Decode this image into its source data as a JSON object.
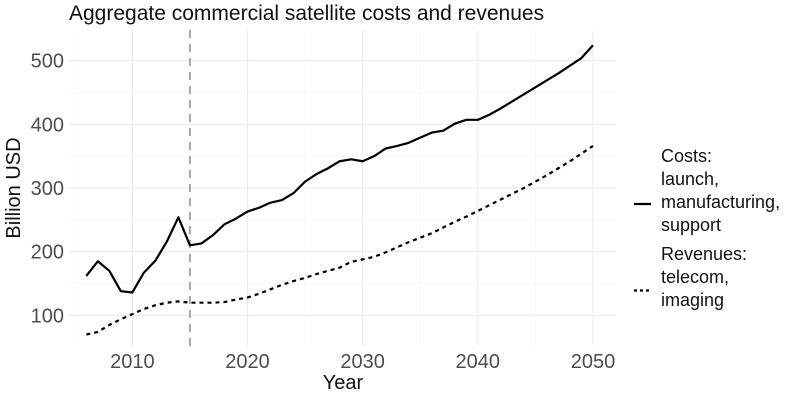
{
  "chart_data": {
    "type": "line",
    "title": "Aggregate commercial satellite costs and revenues",
    "xlabel": "Year",
    "ylabel": "Billion USD",
    "xlim": [
      2004.5,
      2052
    ],
    "ylim": [
      52,
      548
    ],
    "x_ticks": [
      2010,
      2020,
      2030,
      2040,
      2050
    ],
    "y_ticks": [
      100,
      200,
      300,
      400,
      500
    ],
    "grid": true,
    "legend_position": "right",
    "reference_line": {
      "x": 2015,
      "style": "dashed",
      "color": "#a6a6a6"
    },
    "series": [
      {
        "name": "Costs:\nlaunch,\nmanufacturing,\nsupport",
        "style": "solid",
        "color": "#000000",
        "x": [
          2006,
          2007,
          2008,
          2009,
          2010,
          2011,
          2012,
          2013,
          2014,
          2015,
          2016,
          2017,
          2018,
          2019,
          2020,
          2021,
          2022,
          2023,
          2024,
          2025,
          2026,
          2027,
          2028,
          2029,
          2030,
          2031,
          2032,
          2033,
          2034,
          2035,
          2036,
          2037,
          2038,
          2039,
          2040,
          2041,
          2042,
          2043,
          2044,
          2045,
          2046,
          2047,
          2048,
          2049,
          2050
        ],
        "y": [
          162,
          185,
          170,
          138,
          136,
          167,
          186,
          216,
          254,
          210,
          213,
          226,
          243,
          252,
          263,
          269,
          277,
          281,
          292,
          310,
          322,
          331,
          342,
          345,
          342,
          350,
          362,
          366,
          371,
          379,
          387,
          390,
          401,
          407,
          407,
          415,
          425,
          436,
          447,
          458,
          469,
          480,
          492,
          504,
          524
        ]
      },
      {
        "name": "Revenues:\ntelecom,\nimaging",
        "style": "dashed",
        "color": "#000000",
        "x": [
          2006,
          2007,
          2008,
          2009,
          2010,
          2011,
          2012,
          2013,
          2014,
          2015,
          2016,
          2017,
          2018,
          2019,
          2020,
          2021,
          2022,
          2023,
          2024,
          2025,
          2026,
          2027,
          2028,
          2029,
          2030,
          2031,
          2032,
          2033,
          2034,
          2035,
          2036,
          2037,
          2038,
          2039,
          2040,
          2041,
          2042,
          2043,
          2044,
          2045,
          2046,
          2047,
          2048,
          2049,
          2050
        ],
        "y": [
          70,
          74,
          85,
          94,
          102,
          110,
          116,
          120,
          122,
          120,
          120,
          120,
          121,
          125,
          128,
          134,
          141,
          148,
          154,
          159,
          165,
          170,
          175,
          184,
          188,
          192,
          199,
          207,
          215,
          222,
          229,
          238,
          247,
          255,
          264,
          273,
          282,
          291,
          300,
          310,
          320,
          331,
          342,
          354,
          366
        ]
      }
    ]
  }
}
